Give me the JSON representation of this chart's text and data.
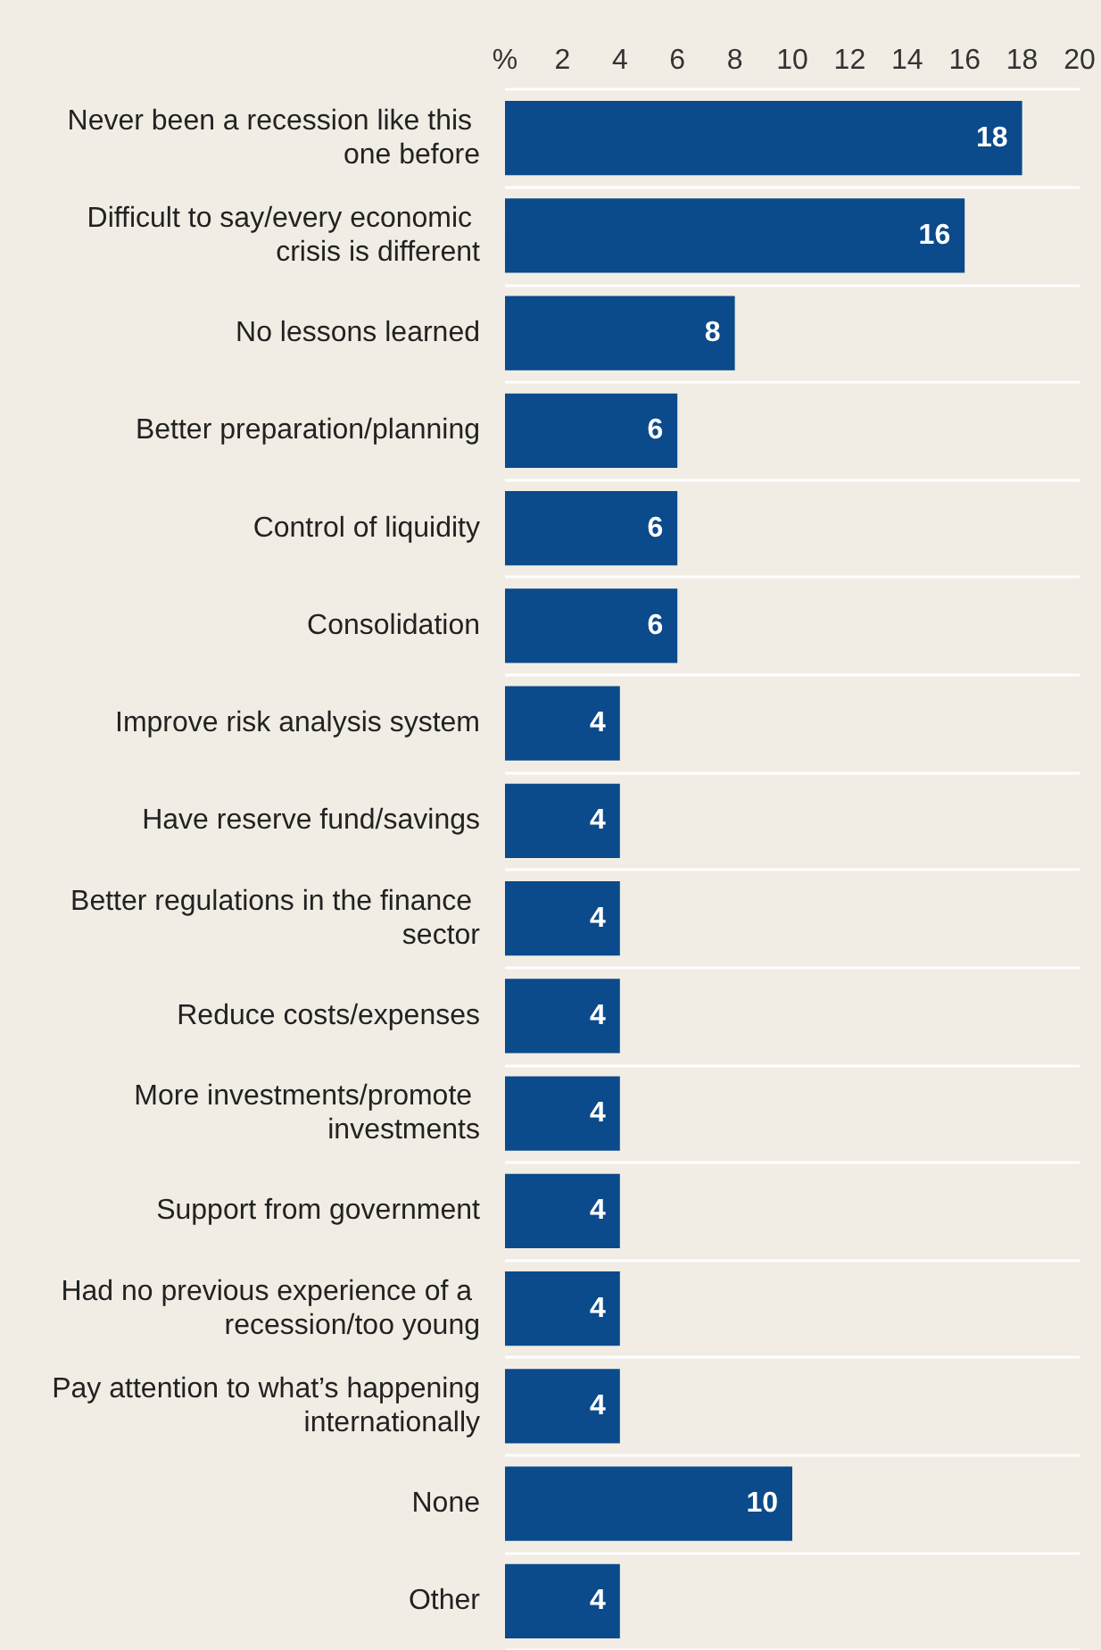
{
  "chart_data": {
    "type": "bar",
    "orientation": "horizontal",
    "categories": [
      "Never been a recession like this one before",
      "Difficult to say/every economic crisis is different",
      "No lessons learned",
      "Better preparation/planning",
      "Control of liquidity",
      "Consolidation",
      "Improve risk analysis system",
      "Have reserve fund/savings",
      "Better regulations in the finance sector",
      "Reduce costs/expenses",
      "More investments/promote investments",
      "Support from government",
      "Had no previous experience of a recession/too young",
      "Pay attention to what’s happening internationally",
      "None",
      "Other"
    ],
    "values": [
      18,
      16,
      8,
      6,
      6,
      6,
      4,
      4,
      4,
      4,
      4,
      4,
      4,
      4,
      10,
      4
    ],
    "color": "#0b4a8b",
    "xlim": [
      0,
      20
    ],
    "xticks": [
      {
        "value": 0,
        "label": "%"
      },
      2,
      4,
      6,
      8,
      10,
      12,
      14,
      16,
      18,
      20
    ],
    "data_labels": true,
    "grid": "y"
  }
}
